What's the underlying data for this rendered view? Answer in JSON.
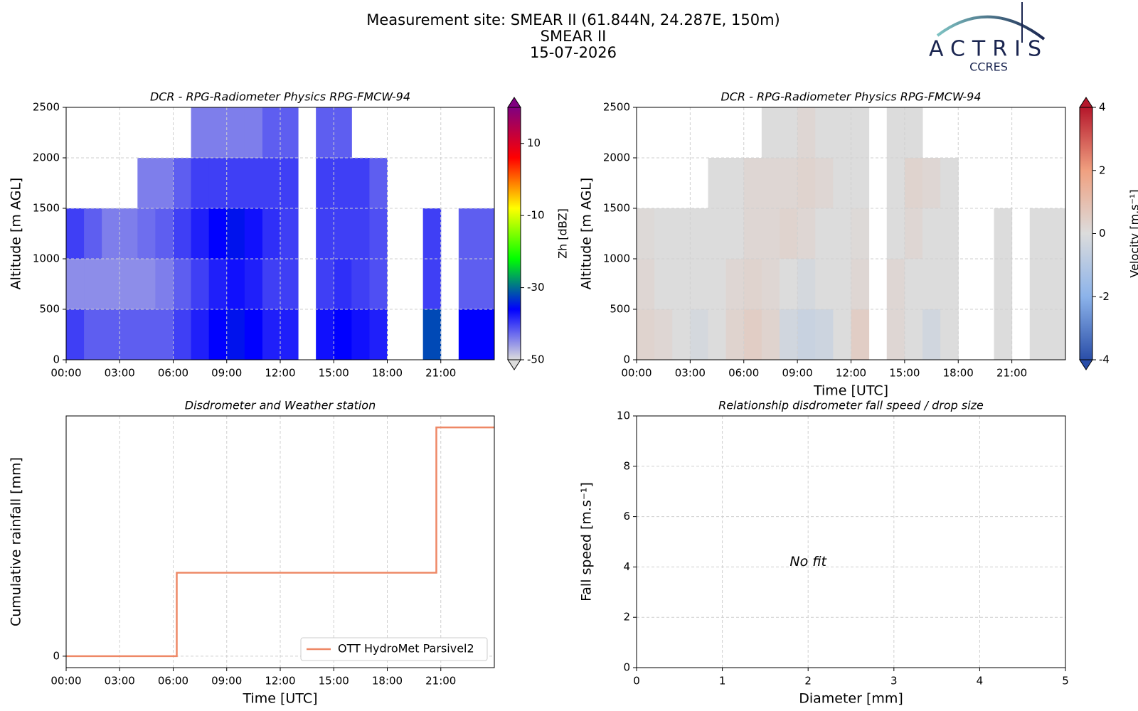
{
  "header": {
    "title": "Measurement site: SMEAR II (61.844N, 24.287E, 150m)",
    "subtitle": "SMEAR II",
    "date": "15-07-2026",
    "logo": "ACTRIS",
    "logo_sub": "CCRES"
  },
  "chart_data": [
    {
      "type": "heatmap",
      "title": "DCR - RPG-Radiometer Physics RPG-FMCW-94",
      "ylabel": "Altitude [m AGL]",
      "colorbar_label": "Zh [dBZ]",
      "x": [
        0,
        1,
        2,
        3,
        4,
        5,
        6,
        7,
        8,
        9,
        10,
        11,
        12,
        13,
        14,
        15,
        16,
        17,
        18,
        19,
        20,
        21,
        22,
        23,
        24
      ],
      "y": [
        0,
        500,
        1000,
        1500,
        2000,
        2500
      ],
      "values": [
        [
          -40,
          -42,
          -42,
          -42,
          -42,
          -42,
          -40,
          -38,
          -36,
          -35,
          -36,
          -38,
          -38,
          null,
          -37,
          -36,
          -37,
          -38,
          null,
          null,
          -32,
          null,
          -36,
          -36
        ],
        [
          -45,
          -45,
          -45,
          -45,
          -45,
          -44,
          -42,
          -40,
          -38,
          -37,
          -38,
          -40,
          -40,
          null,
          -40,
          -39,
          -40,
          -41,
          null,
          null,
          -40,
          null,
          -42,
          -42
        ],
        [
          -40,
          -42,
          -44,
          -44,
          -43,
          -42,
          -40,
          -38,
          -36,
          -35,
          -37,
          -39,
          -40,
          null,
          -40,
          -40,
          -40,
          -41,
          null,
          null,
          -40,
          null,
          -42,
          -42
        ],
        [
          null,
          null,
          null,
          null,
          -44,
          -44,
          -42,
          -40,
          -40,
          -40,
          -40,
          -40,
          -40,
          null,
          -40,
          -40,
          -40,
          -42,
          null,
          null,
          null,
          null,
          null,
          null
        ],
        [
          null,
          null,
          null,
          null,
          null,
          null,
          null,
          -44,
          -44,
          -44,
          -44,
          -42,
          -42,
          null,
          -42,
          -42,
          null,
          null,
          null,
          null,
          null,
          null,
          null,
          null
        ]
      ],
      "xlim": [
        0,
        24
      ],
      "ylim": [
        0,
        2500
      ],
      "xticks": [
        {
          "value": 0,
          "label": "00:00"
        },
        {
          "value": 3,
          "label": "03:00"
        },
        {
          "value": 6,
          "label": "06:00"
        },
        {
          "value": 9,
          "label": "09:00"
        },
        {
          "value": 12,
          "label": "12:00"
        },
        {
          "value": 15,
          "label": "15:00"
        },
        {
          "value": 18,
          "label": "18:00"
        },
        {
          "value": 21,
          "label": "21:00"
        }
      ],
      "yticks": [
        0,
        500,
        1000,
        1500,
        2000,
        2500
      ],
      "clim": [
        -50,
        20
      ],
      "cticks": [
        -50,
        -30,
        -10,
        10
      ],
      "colormap": [
        "#dcdcdc",
        "#0000ff",
        "#00ff00",
        "#ffff00",
        "#ff0000",
        "#800080"
      ],
      "grid": true
    },
    {
      "type": "heatmap",
      "title": "DCR - RPG-Radiometer Physics RPG-FMCW-94",
      "xlabel": "Time [UTC]",
      "ylabel": "Altitude [m AGL]",
      "colorbar_label": "Velocity [m.s⁻¹]",
      "x": [
        0,
        1,
        2,
        3,
        4,
        5,
        6,
        7,
        8,
        9,
        10,
        11,
        12,
        13,
        14,
        15,
        16,
        17,
        18,
        19,
        20,
        21,
        22,
        23,
        24
      ],
      "y": [
        0,
        500,
        1000,
        1500,
        2000,
        2500
      ],
      "values": [
        [
          0.3,
          0.2,
          0,
          -0.2,
          0,
          0.3,
          0.5,
          0.3,
          -0.3,
          -0.5,
          -0.4,
          0,
          0.5,
          null,
          0.2,
          0,
          -0.3,
          0,
          null,
          null,
          0,
          null,
          0,
          0
        ],
        [
          0.2,
          0,
          0,
          0,
          0,
          0.2,
          0.3,
          0.2,
          0,
          -0.2,
          0,
          0,
          0.2,
          null,
          0.2,
          0,
          0,
          0,
          null,
          null,
          0,
          null,
          0,
          0
        ],
        [
          0.1,
          0,
          0,
          0,
          0,
          0,
          0.2,
          0.2,
          0.3,
          0.2,
          0,
          0,
          0.1,
          null,
          0,
          0.2,
          0,
          0,
          null,
          null,
          0,
          null,
          0,
          0
        ],
        [
          null,
          null,
          null,
          null,
          0,
          0,
          0.2,
          0.2,
          0.2,
          0.3,
          0.2,
          0,
          0,
          null,
          0,
          0.3,
          0.2,
          0,
          null,
          null,
          null,
          null,
          null,
          null
        ],
        [
          null,
          null,
          null,
          null,
          null,
          null,
          null,
          0,
          0,
          0.2,
          0,
          0,
          0,
          null,
          0,
          0,
          null,
          null,
          null,
          null,
          null,
          null,
          null,
          null
        ]
      ],
      "xlim": [
        0,
        24
      ],
      "ylim": [
        0,
        2500
      ],
      "xticks": [
        {
          "value": 0,
          "label": "00:00"
        },
        {
          "value": 3,
          "label": "03:00"
        },
        {
          "value": 6,
          "label": "06:00"
        },
        {
          "value": 9,
          "label": "09:00"
        },
        {
          "value": 12,
          "label": "12:00"
        },
        {
          "value": 15,
          "label": "15:00"
        },
        {
          "value": 18,
          "label": "18:00"
        },
        {
          "value": 21,
          "label": "21:00"
        }
      ],
      "yticks": [
        0,
        500,
        1000,
        1500,
        2000,
        2500
      ],
      "clim": [
        -4,
        4
      ],
      "cticks": [
        -4,
        -2,
        0,
        2,
        4
      ],
      "colormap": [
        "#2a4ea8",
        "#8cb3ea",
        "#dcdcdc",
        "#f0a080",
        "#b5172b"
      ],
      "grid": true
    },
    {
      "type": "line",
      "title": "Disdrometer and Weather station",
      "xlabel": "Time [UTC]",
      "ylabel": "Cumulative rainfall [mm]",
      "x": [
        0,
        6.2,
        20.75,
        24
      ],
      "series": [
        {
          "name": "OTT HydroMet Parsivel2",
          "color": "#ee8866",
          "values": [
            0,
            0.073,
            0.2,
            0.2
          ]
        }
      ],
      "step": "post",
      "xlim": [
        0,
        24
      ],
      "ylim": [
        -0.01,
        0.21
      ],
      "xticks": [
        {
          "value": 0,
          "label": "00:00"
        },
        {
          "value": 3,
          "label": "03:00"
        },
        {
          "value": 6,
          "label": "06:00"
        },
        {
          "value": 9,
          "label": "09:00"
        },
        {
          "value": 12,
          "label": "12:00"
        },
        {
          "value": 15,
          "label": "15:00"
        },
        {
          "value": 18,
          "label": "18:00"
        },
        {
          "value": 21,
          "label": "21:00"
        }
      ],
      "yticks": [
        0
      ],
      "legend": "lower right",
      "grid": true
    },
    {
      "type": "scatter",
      "title": "Relationship disdrometer fall speed / drop size",
      "xlabel": "Diameter [mm]",
      "ylabel": "Fall speed [m.s⁻¹]",
      "annotation": "No fit",
      "series": [],
      "xlim": [
        0,
        5
      ],
      "ylim": [
        0,
        10
      ],
      "xticks": [
        0,
        1,
        2,
        3,
        4,
        5
      ],
      "yticks": [
        0,
        2,
        4,
        6,
        8,
        10
      ],
      "grid": true
    }
  ]
}
